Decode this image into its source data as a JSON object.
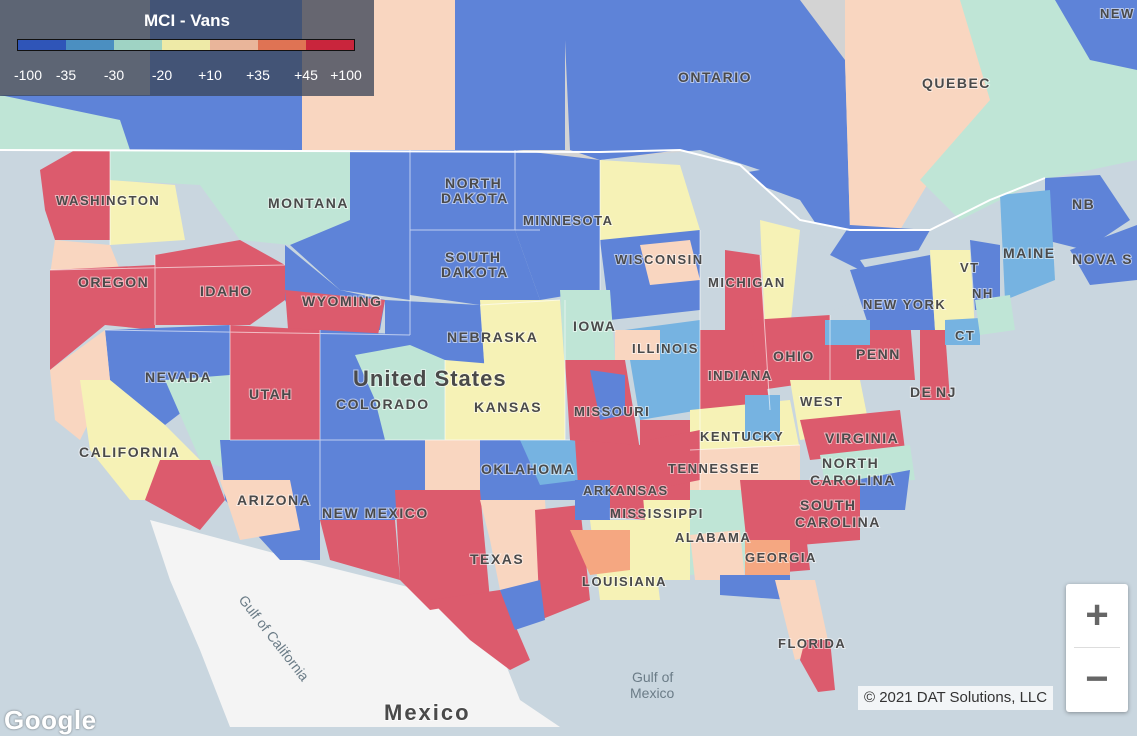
{
  "legend": {
    "title": "MCI - Vans",
    "colors": [
      "#2f55b8",
      "#4b8fc1",
      "#9fd3c4",
      "#eeeaa7",
      "#e9b59a",
      "#df7354",
      "#c9253c"
    ],
    "ticks": [
      "-100",
      "-35",
      "-30",
      "-20",
      "+10",
      "+35",
      "+45",
      "+100"
    ]
  },
  "colors": {
    "deep_blue": "#5e83d8",
    "light_blue": "#76b3e1",
    "teal": "#bfe5d6",
    "yellow": "#f6f2b6",
    "peach": "#f9d6c0",
    "orange": "#f5a781",
    "red": "#dc5b6d",
    "land_gray": "#d3d3d3",
    "mexico_land": "#f4f4f4",
    "water": "#c9d6df"
  },
  "labels": {
    "ontario": "ONTARIO",
    "quebec": "QUEBEC",
    "washington": "WASHINGTON",
    "montana": "MONTANA",
    "north_dakota_1": "NORTH",
    "north_dakota_2": "DAKOTA",
    "minnesota": "MINNESOTA",
    "south_dakota_1": "SOUTH",
    "south_dakota_2": "DAKOTA",
    "oregon": "OREGON",
    "idaho": "IDAHO",
    "wyoming": "WYOMING",
    "wisconsin": "WISCONSIN",
    "michigan": "MICHIGAN",
    "new_york": "NEW YORK",
    "maine": "MAINE",
    "nb": "NB",
    "nova_scotia": "NOVA S",
    "vt": "VT",
    "nh": "NH",
    "ct": "CT",
    "nebraska": "NEBRASKA",
    "iowa": "IOWA",
    "illinois": "ILLINOIS",
    "indiana": "INDIANA",
    "ohio": "OHIO",
    "penn": "PENN",
    "nj": "NJ",
    "de": "DE",
    "nevada": "NEVADA",
    "utah": "UTAH",
    "colorado": "COLORADO",
    "united_states": "United States",
    "kansas": "KANSAS",
    "missouri": "MISSOURI",
    "west_virginia_1": "WEST",
    "virginia": "VIRGINIA",
    "kentucky": "KENTUCKY",
    "california": "CALIFORNIA",
    "arizona": "ARIZONA",
    "new_mexico": "NEW MEXICO",
    "oklahoma": "OKLAHOMA",
    "tennessee": "TENNESSEE",
    "north_carolina_1": "NORTH",
    "north_carolina_2": "CAROLINA",
    "arkansas": "ARKANSAS",
    "south_carolina_1": "SOUTH",
    "south_carolina_2": "CAROLINA",
    "texas": "TEXAS",
    "mississippi": "MISSISSIPPI",
    "alabama": "ALABAMA",
    "georgia": "GEORGIA",
    "louisiana": "LOUISIANA",
    "florida": "FLORIDA",
    "mexico": "Mexico",
    "gulf_of_california": "Gulf of California",
    "gulf_of_mexico_1": "Gulf of",
    "gulf_of_mexico_2": "Mexico",
    "newfoundland": "NEW"
  },
  "zoom": {
    "in": "+",
    "out": "−"
  },
  "attribution": "© 2021 DAT Solutions, LLC",
  "google": "Google"
}
